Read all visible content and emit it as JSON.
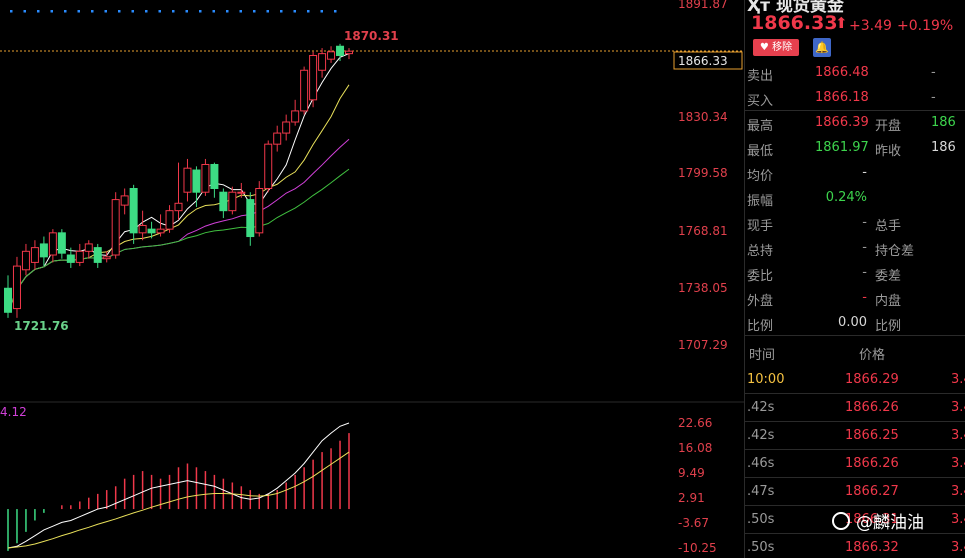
{
  "chart": {
    "price_labels": [
      "1891.87",
      "1830.34",
      "1799.58",
      "1768.81",
      "1738.05",
      "1707.29"
    ],
    "current_price_tag": "1866.33",
    "high_annotation": "1870.31",
    "low_annotation": "1721.76",
    "indicator_top_label": "4.12",
    "indicator_labels": [
      "22.66",
      "16.08",
      "9.49",
      "2.91",
      "-3.67",
      "-10.25"
    ],
    "colors": {
      "up": "#f0384a",
      "down": "#3ddc84",
      "ma1": "#ffffff",
      "ma2": "#e8e05a",
      "ma3": "#d040d8",
      "ma4": "#40c040",
      "dotted_row": "#2a8cff"
    },
    "candles": [
      {
        "o": 1738,
        "c": 1725,
        "h": 1745,
        "l": 1722
      },
      {
        "o": 1727,
        "c": 1750,
        "h": 1755,
        "l": 1722
      },
      {
        "o": 1748,
        "c": 1758,
        "h": 1762,
        "l": 1745
      },
      {
        "o": 1752,
        "c": 1760,
        "h": 1764,
        "l": 1748
      },
      {
        "o": 1762,
        "c": 1755,
        "h": 1766,
        "l": 1750
      },
      {
        "o": 1756,
        "c": 1768,
        "h": 1770,
        "l": 1752
      },
      {
        "o": 1768,
        "c": 1757,
        "h": 1770,
        "l": 1754
      },
      {
        "o": 1756,
        "c": 1752,
        "h": 1760,
        "l": 1749
      },
      {
        "o": 1752,
        "c": 1758,
        "h": 1762,
        "l": 1750
      },
      {
        "o": 1758,
        "c": 1762,
        "h": 1764,
        "l": 1754
      },
      {
        "o": 1760,
        "c": 1752,
        "h": 1762,
        "l": 1749
      },
      {
        "o": 1754,
        "c": 1755,
        "h": 1758,
        "l": 1752
      },
      {
        "o": 1756,
        "c": 1786,
        "h": 1790,
        "l": 1754
      },
      {
        "o": 1783,
        "c": 1788,
        "h": 1792,
        "l": 1778
      },
      {
        "o": 1792,
        "c": 1768,
        "h": 1794,
        "l": 1762
      },
      {
        "o": 1768,
        "c": 1772,
        "h": 1780,
        "l": 1764
      },
      {
        "o": 1770,
        "c": 1768,
        "h": 1774,
        "l": 1765
      },
      {
        "o": 1768,
        "c": 1770,
        "h": 1778,
        "l": 1766
      },
      {
        "o": 1770,
        "c": 1780,
        "h": 1783,
        "l": 1768
      },
      {
        "o": 1780,
        "c": 1784,
        "h": 1806,
        "l": 1775
      },
      {
        "o": 1790,
        "c": 1803,
        "h": 1808,
        "l": 1785
      },
      {
        "o": 1802,
        "c": 1790,
        "h": 1804,
        "l": 1782
      },
      {
        "o": 1790,
        "c": 1805,
        "h": 1808,
        "l": 1788
      },
      {
        "o": 1805,
        "c": 1792,
        "h": 1806,
        "l": 1787
      },
      {
        "o": 1790,
        "c": 1780,
        "h": 1792,
        "l": 1776
      },
      {
        "o": 1780,
        "c": 1790,
        "h": 1793,
        "l": 1778
      },
      {
        "o": 1790,
        "c": 1790,
        "h": 1795,
        "l": 1787
      },
      {
        "o": 1786,
        "c": 1766,
        "h": 1790,
        "l": 1761
      },
      {
        "o": 1768,
        "c": 1792,
        "h": 1796,
        "l": 1766
      },
      {
        "o": 1792,
        "c": 1816,
        "h": 1818,
        "l": 1790
      },
      {
        "o": 1816,
        "c": 1822,
        "h": 1826,
        "l": 1812
      },
      {
        "o": 1822,
        "c": 1828,
        "h": 1832,
        "l": 1818
      },
      {
        "o": 1828,
        "c": 1834,
        "h": 1840,
        "l": 1826
      },
      {
        "o": 1834,
        "c": 1856,
        "h": 1858,
        "l": 1832
      },
      {
        "o": 1840,
        "c": 1864,
        "h": 1866,
        "l": 1836
      },
      {
        "o": 1856,
        "c": 1865,
        "h": 1868,
        "l": 1852
      },
      {
        "o": 1862,
        "c": 1866,
        "h": 1869,
        "l": 1860
      },
      {
        "o": 1869,
        "c": 1864,
        "h": 1870.31,
        "l": 1861
      },
      {
        "o": 1865,
        "c": 1866.33,
        "h": 1868,
        "l": 1862
      }
    ],
    "macd_bars": [
      -11,
      -9,
      -6,
      -3,
      -1,
      0,
      1,
      1,
      2,
      3,
      4,
      5,
      6,
      8,
      9,
      10,
      9,
      8,
      9,
      11,
      12,
      11,
      10,
      9,
      8,
      7,
      6,
      5,
      4,
      4,
      5,
      7,
      9,
      11,
      13,
      15,
      16,
      18,
      20
    ],
    "macd_dif": [
      -10.25,
      -9.8,
      -8.5,
      -7,
      -5.5,
      -4.5,
      -3.5,
      -3,
      -2,
      -1,
      0,
      0.5,
      1.5,
      2.5,
      3.5,
      4.5,
      5.5,
      6,
      6.5,
      7,
      7.5,
      7,
      6.5,
      6,
      5,
      4,
      3,
      2.6,
      2.9,
      4,
      5.5,
      7.5,
      9.5,
      12,
      15,
      18,
      20,
      21.8,
      22.66
    ],
    "macd_dea": [
      -10.25,
      -10,
      -9.7,
      -9.2,
      -8.5,
      -7.8,
      -7,
      -6.3,
      -5.5,
      -4.8,
      -4,
      -3.3,
      -2.6,
      -1.8,
      -1,
      -0.3,
      0.5,
      1.2,
      1.9,
      2.6,
      3.2,
      3.6,
      3.9,
      4.1,
      4.1,
      4,
      3.8,
      3.5,
      3.4,
      3.6,
      4.1,
      5,
      6,
      7.2,
      8.6,
      10.2,
      11.8,
      13.4,
      15
    ]
  },
  "panel": {
    "title": "Ҳт 现货黄金",
    "price": "1866.33",
    "arrow": "⬆",
    "change": "+3.49",
    "change_pct": "+0.19%",
    "fav_button": "移除",
    "fav_icon": "heart-icon",
    "bell_icon": "bell-icon",
    "quotes": [
      {
        "label": "卖出",
        "value": "1866.48",
        "label2": "",
        "value2": "-",
        "color": "red"
      },
      {
        "label": "买入",
        "value": "1866.18",
        "label2": "",
        "value2": "-",
        "color": "red"
      },
      {
        "label": "最高",
        "value": "1866.39",
        "label2": "开盘",
        "value2": "186",
        "color": "red",
        "color2": "green"
      },
      {
        "label": "最低",
        "value": "1861.97",
        "label2": "昨收",
        "value2": "186",
        "color": "green",
        "color2": "white"
      },
      {
        "label": "均价",
        "value": "-",
        "label2": "",
        "value2": "",
        "color": "white"
      },
      {
        "label": "振幅",
        "value": "0.24%",
        "label2": "",
        "value2": "",
        "color": "green"
      },
      {
        "label": "现手",
        "value": "-",
        "label2": "总手",
        "value2": "",
        "color": "gray"
      },
      {
        "label": "总持",
        "value": "-",
        "label2": "持仓差",
        "value2": "",
        "color": "gray"
      },
      {
        "label": "委比",
        "value": "-",
        "label2": "委差",
        "value2": "",
        "color": "gray"
      },
      {
        "label": "外盘",
        "value": "-",
        "label2": "内盘",
        "value2": "",
        "color": "red"
      },
      {
        "label": "比例",
        "value": "0.00",
        "label2": "比例",
        "value2": "",
        "color": "white"
      }
    ],
    "ticks_header": {
      "time": "时间",
      "price": "价格"
    },
    "ticks": [
      {
        "time": "10:00",
        "price": "1866.29",
        "extra": "3.4"
      },
      {
        "time": ".42s",
        "price": "1866.26",
        "extra": "3.4"
      },
      {
        "time": ".42s",
        "price": "1866.25",
        "extra": "3.4"
      },
      {
        "time": ".46s",
        "price": "1866.26",
        "extra": "3.4"
      },
      {
        "time": ".47s",
        "price": "1866.27",
        "extra": "3.4"
      },
      {
        "time": ".50s",
        "price": "1866.31",
        "extra": "3.4"
      },
      {
        "time": ".50s",
        "price": "1866.32",
        "extra": "3.4"
      }
    ]
  },
  "watermark": "@麟油油"
}
